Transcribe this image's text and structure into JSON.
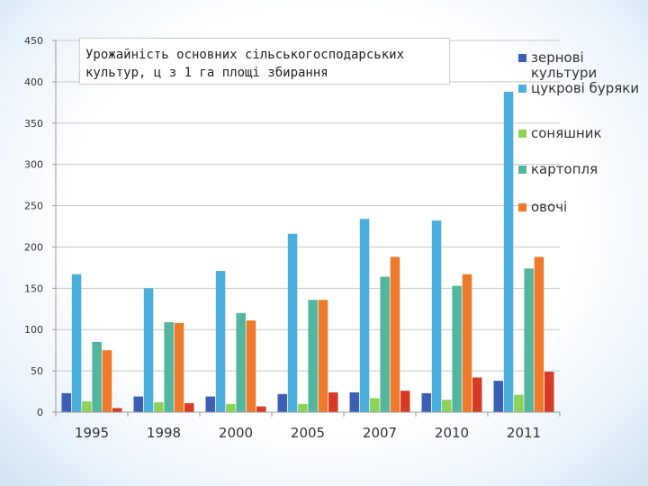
{
  "chart_data": {
    "type": "bar",
    "title": "Урожайність основних сільськогосподарських культур, ц з 1 га площі збирання",
    "categories": [
      "1995",
      "1998",
      "2000",
      "2005",
      "2007",
      "2010",
      "2011"
    ],
    "ylim": [
      0,
      450
    ],
    "yticks": [
      "0",
      "50",
      "100",
      "150",
      "200",
      "250",
      "300",
      "350",
      "400",
      "450"
    ],
    "grid": true,
    "legend_position": "right",
    "series": [
      {
        "name": "зернові культури",
        "color": "#3a5fb5",
        "values": [
          23,
          19,
          19,
          22,
          24,
          23,
          38
        ]
      },
      {
        "name": "цукрові буряки",
        "color": "#4aafdc",
        "values": [
          167,
          150,
          171,
          216,
          234,
          232,
          388
        ]
      },
      {
        "name": "соняшник",
        "color": "#8ed357",
        "values": [
          13,
          12,
          10,
          10,
          17,
          15,
          21
        ]
      },
      {
        "name": "картопля",
        "color": "#52b59c",
        "values": [
          85,
          109,
          120,
          136,
          164,
          153,
          174
        ]
      },
      {
        "name": "овочі",
        "color": "#ec7a2a",
        "values": [
          75,
          108,
          111,
          136,
          188,
          167,
          188
        ]
      },
      {
        "name": "",
        "color": "#d63c25",
        "values": [
          5,
          11,
          7,
          24,
          26,
          42,
          49
        ]
      }
    ]
  }
}
